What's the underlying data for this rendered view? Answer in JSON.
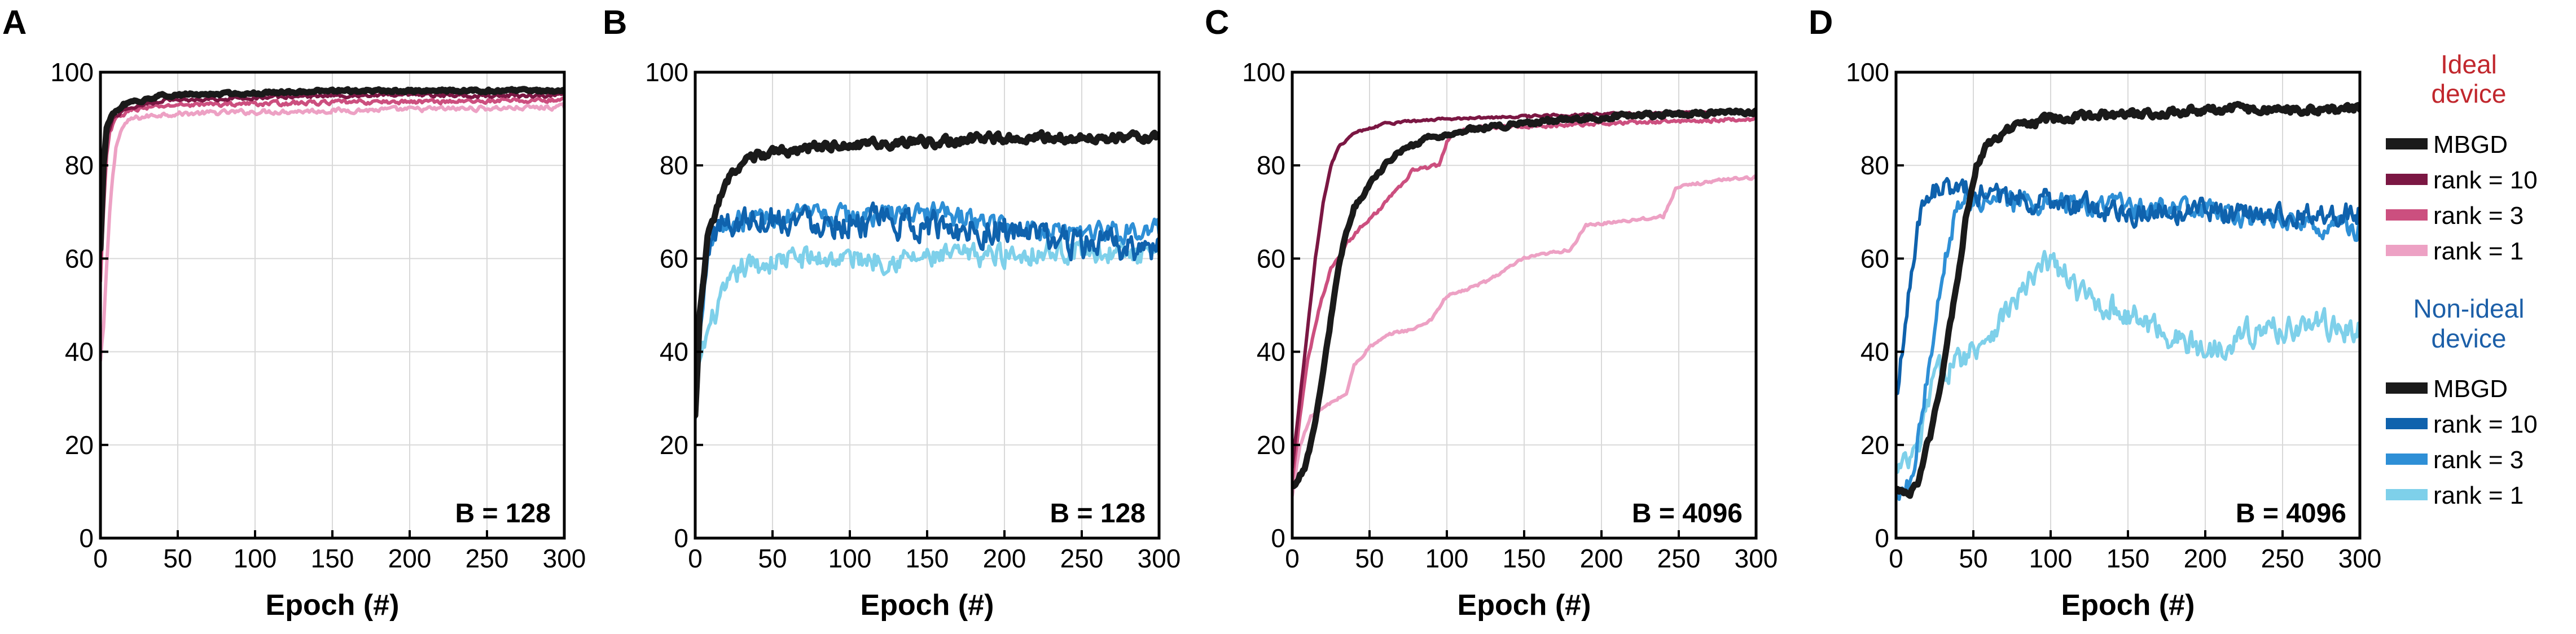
{
  "figure": {
    "colors": {
      "mbgd": "#1a1a1a",
      "ideal_rank10": "#7b1743",
      "ideal_rank3": "#cc4f7f",
      "ideal_rank1": "#eda1c4",
      "nonideal_rank10": "#0f62ad",
      "nonideal_rank3": "#2e8fd6",
      "nonideal_rank1": "#7ed0ea",
      "ideal_title": "#c1272d",
      "nonideal_title": "#1c5fa8",
      "grid": "#d9d9d9",
      "axis": "#000000"
    },
    "legend": {
      "ideal_title_line1": "Ideal",
      "ideal_title_line2": "device",
      "nonideal_title_line1": "Non-ideal",
      "nonideal_title_line2": "device",
      "ideal_entries": [
        {
          "label": "MBGD",
          "color": "mbgd"
        },
        {
          "label": "rank = 10",
          "color": "ideal_rank10"
        },
        {
          "label": "rank = 3",
          "color": "ideal_rank3"
        },
        {
          "label": "rank = 1",
          "color": "ideal_rank1"
        }
      ],
      "nonideal_entries": [
        {
          "label": "MBGD",
          "color": "mbgd"
        },
        {
          "label": "rank = 10",
          "color": "nonideal_rank10"
        },
        {
          "label": "rank = 3",
          "color": "nonideal_rank3"
        },
        {
          "label": "rank = 1",
          "color": "nonideal_rank1"
        }
      ]
    }
  },
  "chart_data": [
    {
      "panel": "A",
      "type": "line",
      "title": "",
      "annotation": "B = 128",
      "xlabel": "Epoch (#)",
      "ylabel": "",
      "xlim": [
        0,
        300
      ],
      "ylim": [
        0,
        100
      ],
      "xticks": [
        0,
        50,
        100,
        150,
        200,
        250,
        300
      ],
      "yticks": [
        0,
        20,
        40,
        60,
        80,
        100
      ],
      "grid": true,
      "series": [
        {
          "name": "rank = 1",
          "color": "ideal_rank1",
          "noise": 0.8,
          "points": [
            [
              0,
              38
            ],
            [
              2,
              45
            ],
            [
              4,
              58
            ],
            [
              6,
              70
            ],
            [
              8,
              78
            ],
            [
              10,
              84
            ],
            [
              14,
              88
            ],
            [
              20,
              90
            ],
            [
              40,
              91
            ],
            [
              100,
              91.5
            ],
            [
              200,
              92
            ],
            [
              300,
              92.5
            ]
          ]
        },
        {
          "name": "rank = 3",
          "color": "ideal_rank3",
          "noise": 0.7,
          "points": [
            [
              0,
              55
            ],
            [
              2,
              70
            ],
            [
              4,
              82
            ],
            [
              6,
              87
            ],
            [
              10,
              90
            ],
            [
              20,
              92
            ],
            [
              50,
              93
            ],
            [
              150,
              93.5
            ],
            [
              300,
              94
            ]
          ]
        },
        {
          "name": "rank = 10",
          "color": "ideal_rank10",
          "noise": 0.6,
          "points": [
            [
              0,
              60
            ],
            [
              2,
              78
            ],
            [
              4,
              86
            ],
            [
              8,
              90
            ],
            [
              15,
              92
            ],
            [
              40,
              94
            ],
            [
              150,
              95
            ],
            [
              300,
              95
            ]
          ]
        },
        {
          "name": "MBGD",
          "color": "mbgd",
          "noise": 0.5,
          "points": [
            [
              0,
              62
            ],
            [
              2,
              80
            ],
            [
              4,
              88
            ],
            [
              8,
              91
            ],
            [
              15,
              93
            ],
            [
              40,
              95
            ],
            [
              150,
              96
            ],
            [
              300,
              96
            ]
          ]
        }
      ]
    },
    {
      "panel": "B",
      "type": "line",
      "title": "",
      "annotation": "B = 128",
      "xlabel": "Epoch (#)",
      "ylabel": "",
      "xlim": [
        0,
        300
      ],
      "ylim": [
        0,
        100
      ],
      "xticks": [
        0,
        50,
        100,
        150,
        200,
        250,
        300
      ],
      "yticks": [
        0,
        20,
        40,
        60,
        80,
        100
      ],
      "grid": true,
      "series": [
        {
          "name": "rank = 1",
          "color": "nonideal_rank1",
          "noise": 4,
          "points": [
            [
              0,
              27
            ],
            [
              3,
              38
            ],
            [
              8,
              44
            ],
            [
              15,
              50
            ],
            [
              30,
              58
            ],
            [
              60,
              60
            ],
            [
              100,
              60
            ],
            [
              150,
              60
            ],
            [
              200,
              61
            ],
            [
              250,
              62
            ],
            [
              300,
              60
            ]
          ]
        },
        {
          "name": "rank = 3",
          "color": "nonideal_rank3",
          "noise": 3.5,
          "points": [
            [
              0,
              25
            ],
            [
              3,
              45
            ],
            [
              8,
              62
            ],
            [
              15,
              67
            ],
            [
              40,
              69
            ],
            [
              100,
              69
            ],
            [
              150,
              70
            ],
            [
              200,
              67
            ],
            [
              250,
              66
            ],
            [
              300,
              66
            ]
          ]
        },
        {
          "name": "rank = 10",
          "color": "nonideal_rank10",
          "noise": 5,
          "points": [
            [
              0,
              25
            ],
            [
              3,
              50
            ],
            [
              8,
              63
            ],
            [
              15,
              67
            ],
            [
              40,
              69
            ],
            [
              100,
              68
            ],
            [
              150,
              67
            ],
            [
              200,
              66
            ],
            [
              250,
              63
            ],
            [
              300,
              62
            ]
          ]
        },
        {
          "name": "MBGD",
          "color": "mbgd",
          "noise": 1.6,
          "points": [
            [
              0,
              26
            ],
            [
              3,
              48
            ],
            [
              8,
              64
            ],
            [
              15,
              72
            ],
            [
              25,
              79
            ],
            [
              40,
              82
            ],
            [
              80,
              84
            ],
            [
              150,
              85
            ],
            [
              200,
              86
            ],
            [
              250,
              86
            ],
            [
              300,
              86
            ]
          ]
        }
      ]
    },
    {
      "panel": "C",
      "type": "line",
      "title": "",
      "annotation": "B = 4096",
      "xlabel": "Epoch (#)",
      "ylabel": "",
      "xlim": [
        0,
        300
      ],
      "ylim": [
        0,
        100
      ],
      "xticks": [
        0,
        50,
        100,
        150,
        200,
        250,
        300
      ],
      "yticks": [
        0,
        20,
        40,
        60,
        80,
        100
      ],
      "grid": true,
      "series": [
        {
          "name": "rank = 1",
          "color": "ideal_rank1",
          "noise": 0.5,
          "points": [
            [
              0,
              9
            ],
            [
              5,
              20
            ],
            [
              12,
              26
            ],
            [
              25,
              29
            ],
            [
              35,
              31
            ],
            [
              40,
              37
            ],
            [
              50,
              41
            ],
            [
              65,
              44
            ],
            [
              80,
              45
            ],
            [
              90,
              47
            ],
            [
              100,
              52
            ],
            [
              110,
              53
            ],
            [
              125,
              55
            ],
            [
              140,
              58
            ],
            [
              150,
              60
            ],
            [
              165,
              61
            ],
            [
              180,
              62
            ],
            [
              190,
              67
            ],
            [
              210,
              68
            ],
            [
              240,
              69
            ],
            [
              248,
              75
            ],
            [
              260,
              76
            ],
            [
              280,
              77
            ],
            [
              300,
              77.5
            ]
          ]
        },
        {
          "name": "rank = 3",
          "color": "ideal_rank3",
          "noise": 0.6,
          "points": [
            [
              0,
              12
            ],
            [
              5,
              26
            ],
            [
              10,
              38
            ],
            [
              18,
              50
            ],
            [
              25,
              58
            ],
            [
              35,
              63
            ],
            [
              45,
              67
            ],
            [
              55,
              70
            ],
            [
              65,
              74
            ],
            [
              72,
              76
            ],
            [
              78,
              79
            ],
            [
              95,
              80
            ],
            [
              100,
              85
            ],
            [
              105,
              87
            ],
            [
              120,
              88
            ],
            [
              200,
              89
            ],
            [
              300,
              90
            ]
          ]
        },
        {
          "name": "rank = 10",
          "color": "ideal_rank10",
          "noise": 0.4,
          "points": [
            [
              0,
              15
            ],
            [
              5,
              30
            ],
            [
              10,
              45
            ],
            [
              15,
              60
            ],
            [
              20,
              72
            ],
            [
              25,
              80
            ],
            [
              30,
              84
            ],
            [
              40,
              87
            ],
            [
              60,
              89
            ],
            [
              100,
              90
            ],
            [
              200,
              91
            ],
            [
              300,
              91.5
            ]
          ]
        },
        {
          "name": "MBGD",
          "color": "mbgd",
          "noise": 0.8,
          "points": [
            [
              0,
              11
            ],
            [
              8,
              15
            ],
            [
              14,
              23
            ],
            [
              20,
              35
            ],
            [
              25,
              47
            ],
            [
              30,
              58
            ],
            [
              35,
              66
            ],
            [
              40,
              71
            ],
            [
              50,
              76
            ],
            [
              60,
              80
            ],
            [
              70,
              83
            ],
            [
              90,
              86
            ],
            [
              120,
              88
            ],
            [
              180,
              90
            ],
            [
              250,
              91
            ],
            [
              300,
              91.5
            ]
          ]
        }
      ]
    },
    {
      "panel": "D",
      "type": "line",
      "title": "",
      "annotation": "B = 4096",
      "xlabel": "Epoch (#)",
      "ylabel": "",
      "xlim": [
        0,
        300
      ],
      "ylim": [
        0,
        100
      ],
      "xticks": [
        0,
        50,
        100,
        150,
        200,
        250,
        300
      ],
      "yticks": [
        0,
        20,
        40,
        60,
        80,
        100
      ],
      "grid": true,
      "series": [
        {
          "name": "rank = 1",
          "color": "nonideal_rank1",
          "noise": 4.5,
          "points": [
            [
              0,
              14
            ],
            [
              8,
              16
            ],
            [
              15,
              19
            ],
            [
              20,
              28
            ],
            [
              25,
              35
            ],
            [
              40,
              38
            ],
            [
              60,
              44
            ],
            [
              80,
              52
            ],
            [
              100,
              60
            ],
            [
              120,
              52
            ],
            [
              150,
              48
            ],
            [
              175,
              44
            ],
            [
              200,
              40
            ],
            [
              225,
              44
            ],
            [
              250,
              45
            ],
            [
              275,
              46
            ],
            [
              300,
              44
            ]
          ]
        },
        {
          "name": "rank = 3",
          "color": "nonideal_rank3",
          "noise": 3.5,
          "points": [
            [
              0,
              10
            ],
            [
              10,
              13
            ],
            [
              20,
              34
            ],
            [
              30,
              58
            ],
            [
              40,
              72
            ],
            [
              60,
              72
            ],
            [
              100,
              72
            ],
            [
              150,
              71
            ],
            [
              200,
              70
            ],
            [
              250,
              68
            ],
            [
              300,
              66
            ]
          ]
        },
        {
          "name": "rank = 10",
          "color": "nonideal_rank10",
          "noise": 4,
          "points": [
            [
              0,
              30
            ],
            [
              8,
              52
            ],
            [
              15,
              68
            ],
            [
              22,
              75
            ],
            [
              35,
              75
            ],
            [
              60,
              74
            ],
            [
              100,
              72
            ],
            [
              150,
              70
            ],
            [
              200,
              70
            ],
            [
              250,
              69
            ],
            [
              300,
              70
            ]
          ]
        },
        {
          "name": "MBGD",
          "color": "mbgd",
          "noise": 1.4,
          "points": [
            [
              0,
              10
            ],
            [
              8,
              9
            ],
            [
              15,
              13
            ],
            [
              22,
              22
            ],
            [
              30,
              35
            ],
            [
              38,
              52
            ],
            [
              45,
              68
            ],
            [
              52,
              80
            ],
            [
              60,
              85
            ],
            [
              75,
              88
            ],
            [
              100,
              90
            ],
            [
              150,
              91
            ],
            [
              200,
              92
            ],
            [
              250,
              92
            ],
            [
              300,
              92
            ]
          ]
        }
      ]
    }
  ]
}
